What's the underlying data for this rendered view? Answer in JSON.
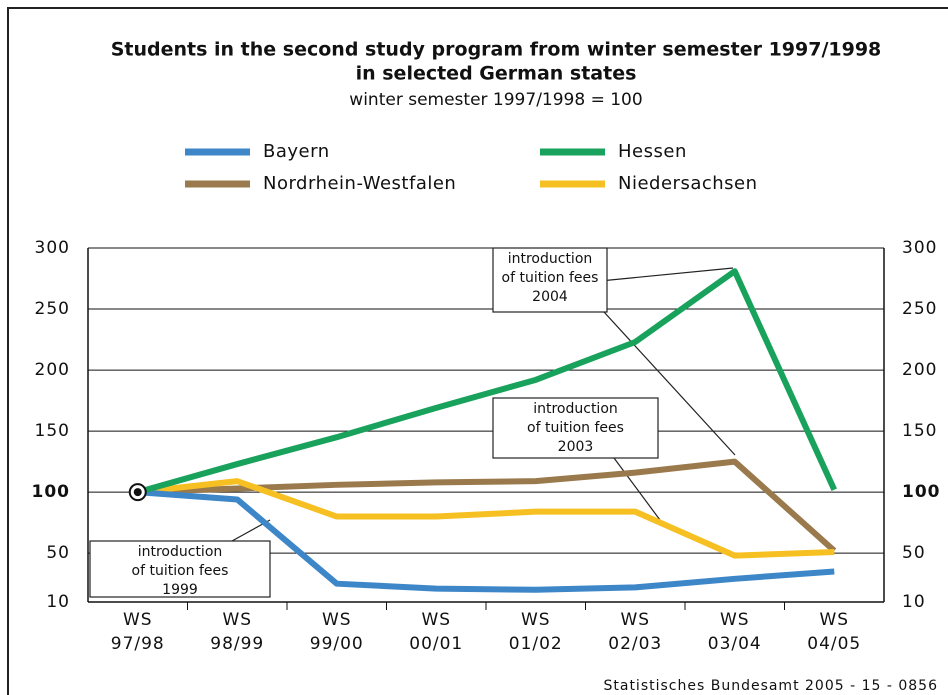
{
  "chart_data": {
    "type": "line",
    "title": [
      "Students in the second study program from winter semester 1997/1998",
      "in selected German states"
    ],
    "subtitle": "winter semester 1997/1998 = 100",
    "categories": [
      [
        "WS",
        "97/98"
      ],
      [
        "WS",
        "98/99"
      ],
      [
        "WS",
        "99/00"
      ],
      [
        "WS",
        "00/01"
      ],
      [
        "WS",
        "01/02"
      ],
      [
        "WS",
        "02/03"
      ],
      [
        "WS",
        "03/04"
      ],
      [
        "WS",
        "04/05"
      ]
    ],
    "series": [
      {
        "name": "Bayern",
        "color": "#3d86c8",
        "values": [
          100,
          94,
          25,
          21,
          20,
          22,
          29,
          35
        ]
      },
      {
        "name": "Hessen",
        "color": "#19a25c",
        "values": [
          100,
          123,
          145,
          169,
          192,
          223,
          281,
          102
        ]
      },
      {
        "name": "Nordrhein-Westfalen",
        "color": "#9a7a4c",
        "values": [
          100,
          103,
          106,
          108,
          109,
          116,
          125,
          52
        ]
      },
      {
        "name": "Niedersachsen",
        "color": "#f6c023",
        "values": [
          100,
          109,
          80,
          80,
          84,
          84,
          48,
          51
        ]
      }
    ],
    "ylim": [
      10,
      300
    ],
    "yticks": [
      10,
      50,
      100,
      150,
      200,
      250,
      300
    ],
    "grid": true,
    "annotations": [
      [
        "introduction",
        "of tuition fees",
        "2004"
      ],
      [
        "introduction",
        "of tuition fees",
        "2003"
      ],
      [
        "introduction",
        "of tuition fees",
        "1999"
      ]
    ],
    "source": "Statistisches Bundesamt 2005 - 15 - 0856"
  }
}
